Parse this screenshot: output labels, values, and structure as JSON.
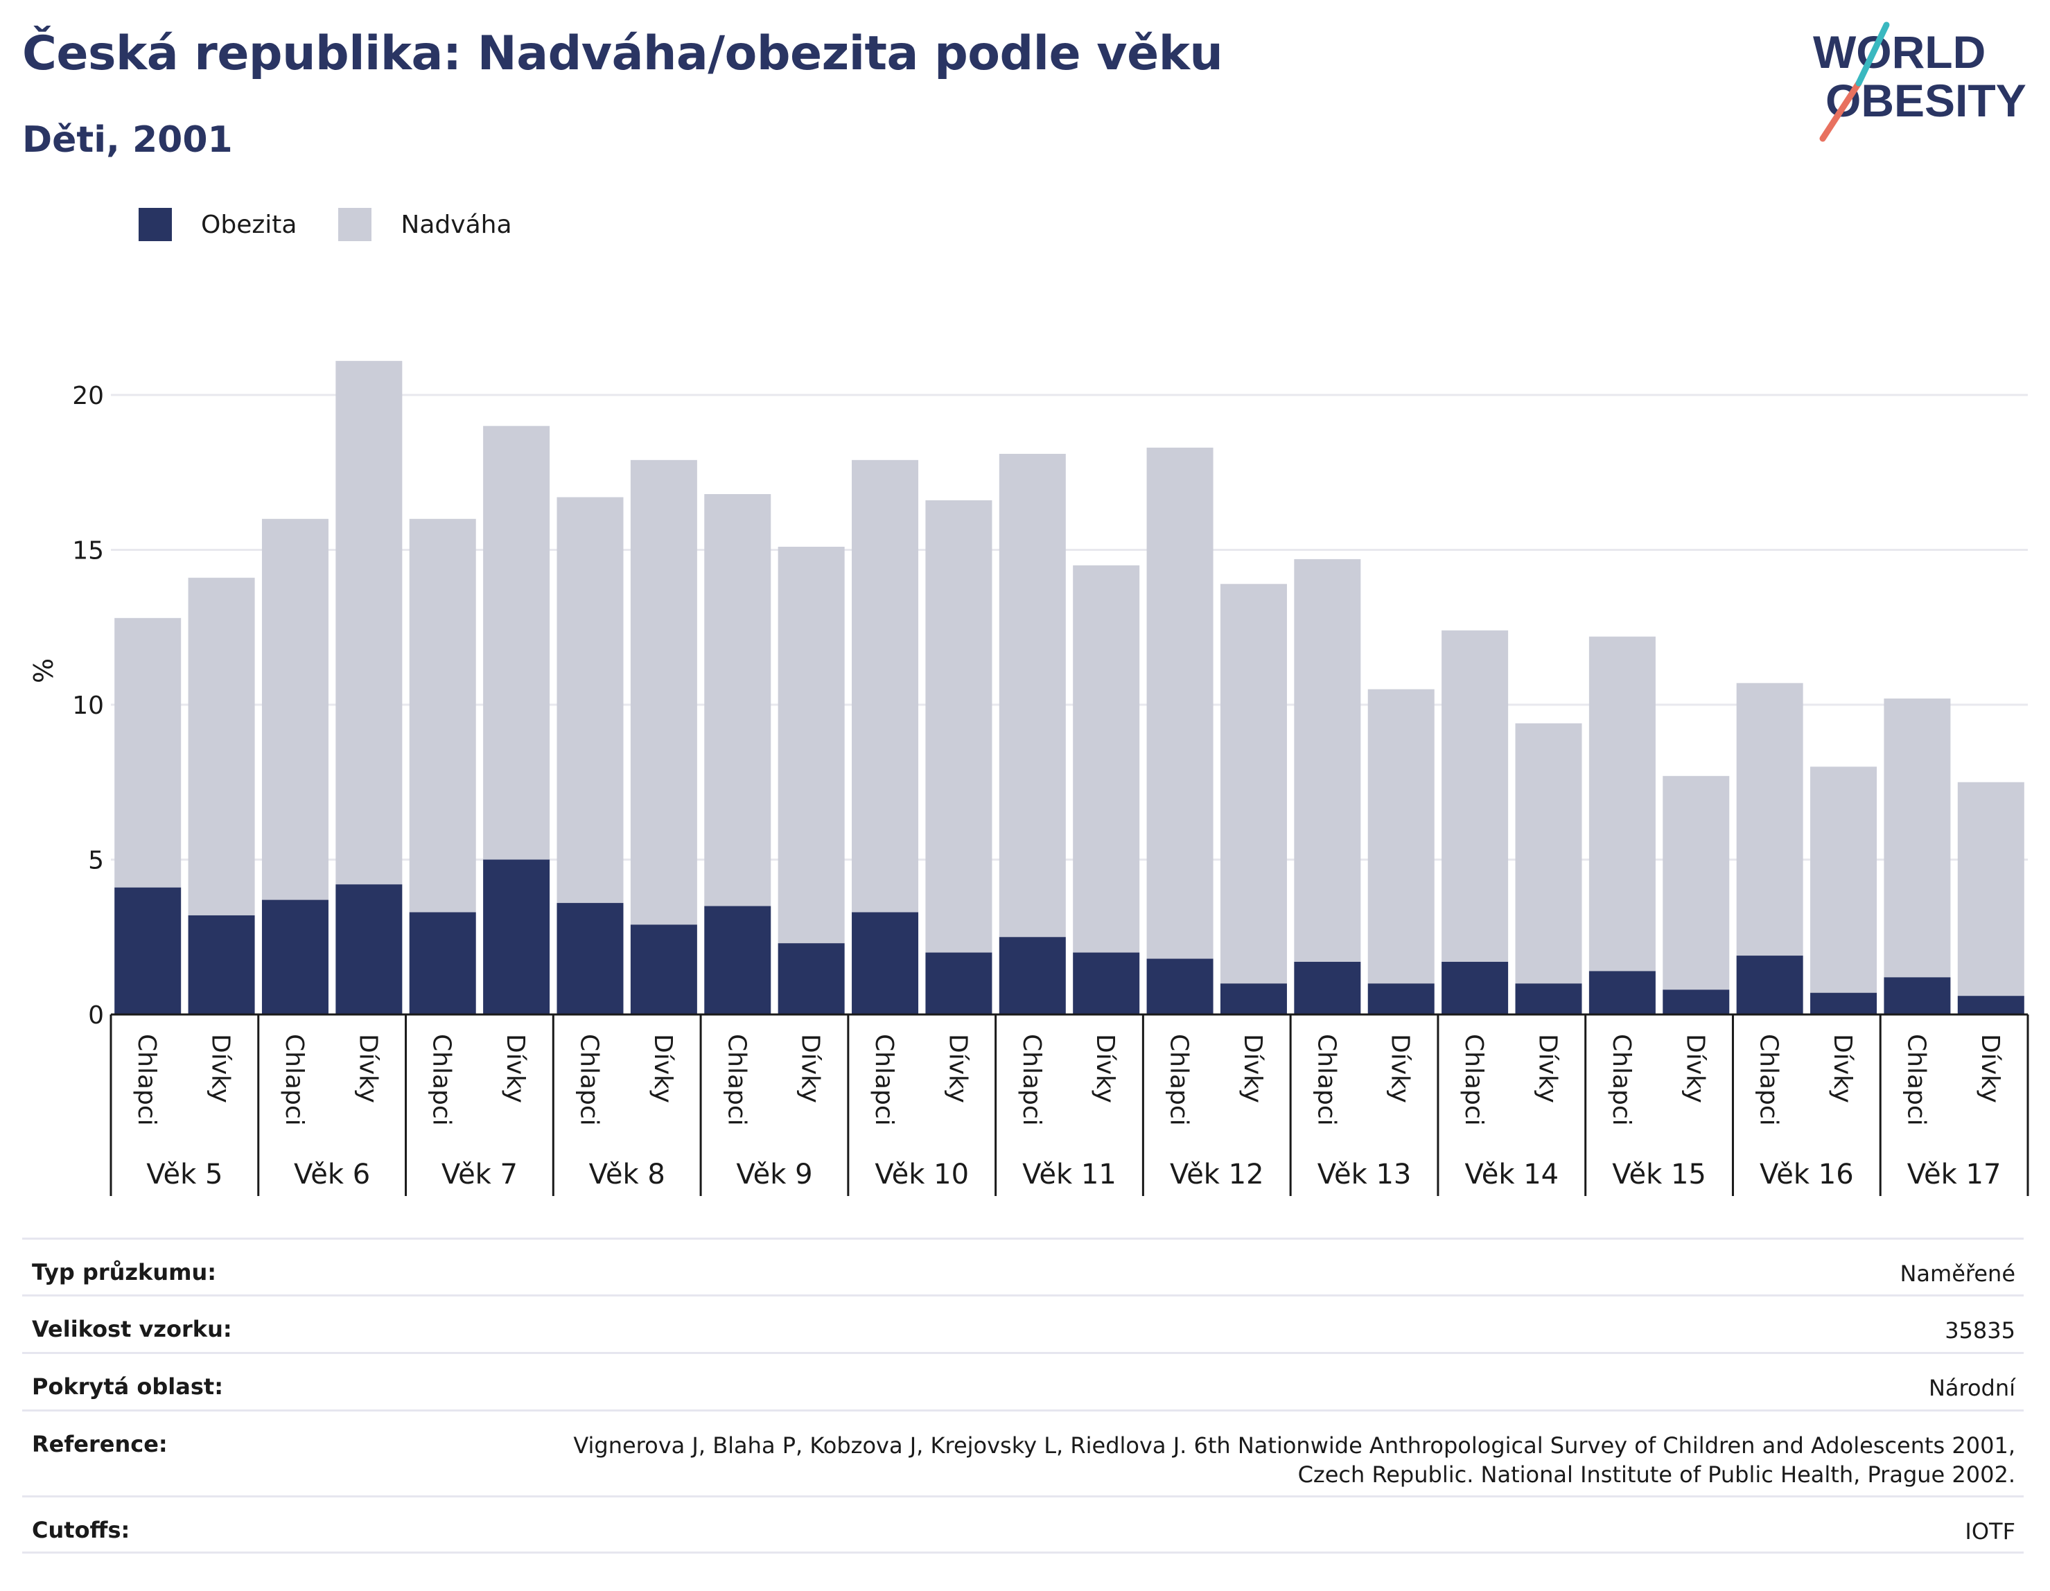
{
  "header": {
    "title": "Česká republika: Nadváha/obezita podle věku",
    "subtitle": "Děti, 2001"
  },
  "logo": {
    "line1": "WORLD",
    "line2": "OBESITY"
  },
  "legend": [
    {
      "label": "Obezita",
      "color": "#283462"
    },
    {
      "label": "Nadváha",
      "color": "#cbcdd8"
    }
  ],
  "chart_data": {
    "type": "bar",
    "stacked": true,
    "ylabel": "%",
    "ylim": [
      0,
      22
    ],
    "yticks": [
      0,
      5,
      10,
      15,
      20
    ],
    "grid": true,
    "legend_position": "top-left",
    "groups": [
      "Věk 5",
      "Věk 6",
      "Věk 7",
      "Věk 8",
      "Věk 9",
      "Věk 10",
      "Věk 11",
      "Věk 12",
      "Věk 13",
      "Věk 14",
      "Věk 15",
      "Věk 16",
      "Věk 17"
    ],
    "subcategories": [
      "Chlapci",
      "Dívky"
    ],
    "series": [
      {
        "name": "Obezita",
        "color": "#283462",
        "values": [
          4.1,
          3.2,
          3.7,
          4.2,
          3.3,
          5.0,
          3.6,
          2.9,
          3.5,
          2.3,
          3.3,
          2.0,
          2.5,
          2.0,
          1.8,
          1.0,
          1.7,
          1.0,
          1.7,
          1.0,
          1.4,
          0.8,
          1.9,
          0.7,
          1.2,
          0.6
        ]
      },
      {
        "name": "Nadváha",
        "color": "#cbcdd8",
        "values": [
          8.7,
          10.9,
          12.3,
          16.9,
          12.7,
          14.0,
          13.1,
          15.0,
          13.3,
          12.8,
          14.6,
          14.6,
          15.6,
          12.5,
          16.5,
          12.9,
          13.0,
          9.5,
          10.7,
          8.4,
          10.8,
          6.9,
          8.8,
          7.3,
          9.0,
          6.9
        ]
      }
    ]
  },
  "info_rows": [
    {
      "label": "Typ průzkumu:",
      "value": "Naměřené"
    },
    {
      "label": "Velikost vzorku:",
      "value": "35835"
    },
    {
      "label": "Pokrytá oblast:",
      "value": "Národní"
    },
    {
      "label": "Reference:",
      "value": "Vignerova J, Blaha P, Kobzova J, Krejovsky L, Riedlova J. 6th Nationwide Anthropological Survey of Children and Adolescents 2001,\nCzech Republic. National Institute of Public Health, Prague 2002."
    },
    {
      "label": "Cutoffs:",
      "value": "IOTF"
    }
  ]
}
